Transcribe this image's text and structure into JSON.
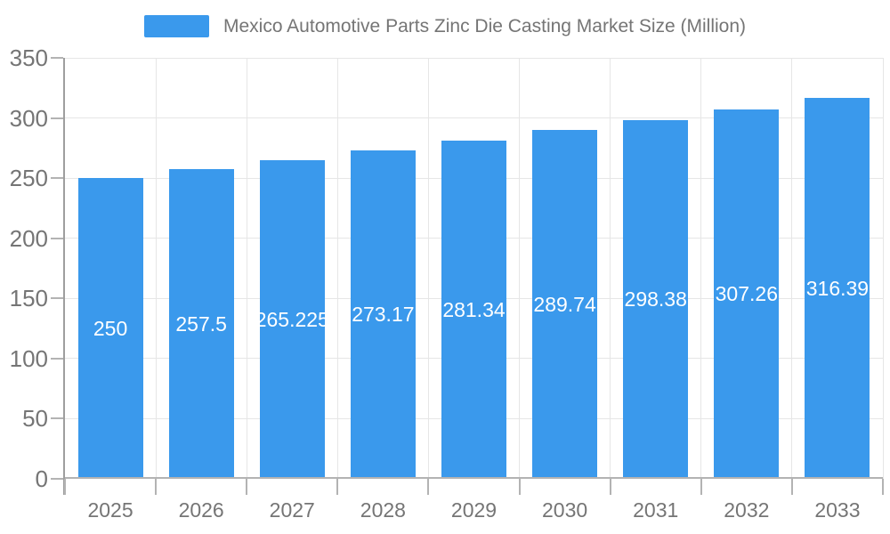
{
  "legend": {
    "items": [
      {
        "label": "Mexico Automotive Parts Zinc Die Casting Market Size (Million)",
        "swatch_color": "#3a99ec"
      }
    ],
    "position": "top-center"
  },
  "chart_data": {
    "type": "bar",
    "title": "Mexico Automotive Parts Zinc Die Casting Market Size (Million)",
    "categories": [
      "2025",
      "2026",
      "2027",
      "2028",
      "2029",
      "2030",
      "2031",
      "2032",
      "2033"
    ],
    "values": [
      250,
      257.5,
      265.225,
      273.17,
      281.34,
      289.74,
      298.38,
      307.26,
      316.39
    ],
    "bar_labels": [
      "250",
      "257.5",
      "265.225",
      "273.17",
      "281.34",
      "289.74",
      "298.38",
      "307.26",
      "316.39"
    ],
    "series_name": "Mexico Automotive Parts Zinc Die Casting Market Size (Million)",
    "xlabel": "",
    "ylabel": "",
    "ylim": [
      0,
      350
    ],
    "yticks": [
      0,
      50,
      100,
      150,
      200,
      250,
      300,
      350
    ],
    "grid": true,
    "legend_position": "top",
    "colors": {
      "bar": "#3a99ec",
      "bar_label": "#ffffff",
      "axis_text": "#757575",
      "gridline": "#e6e6e6",
      "axis_baseline": "#b3b3b3",
      "y_axis_line": "#9e9e9e",
      "background": "#ffffff"
    }
  }
}
